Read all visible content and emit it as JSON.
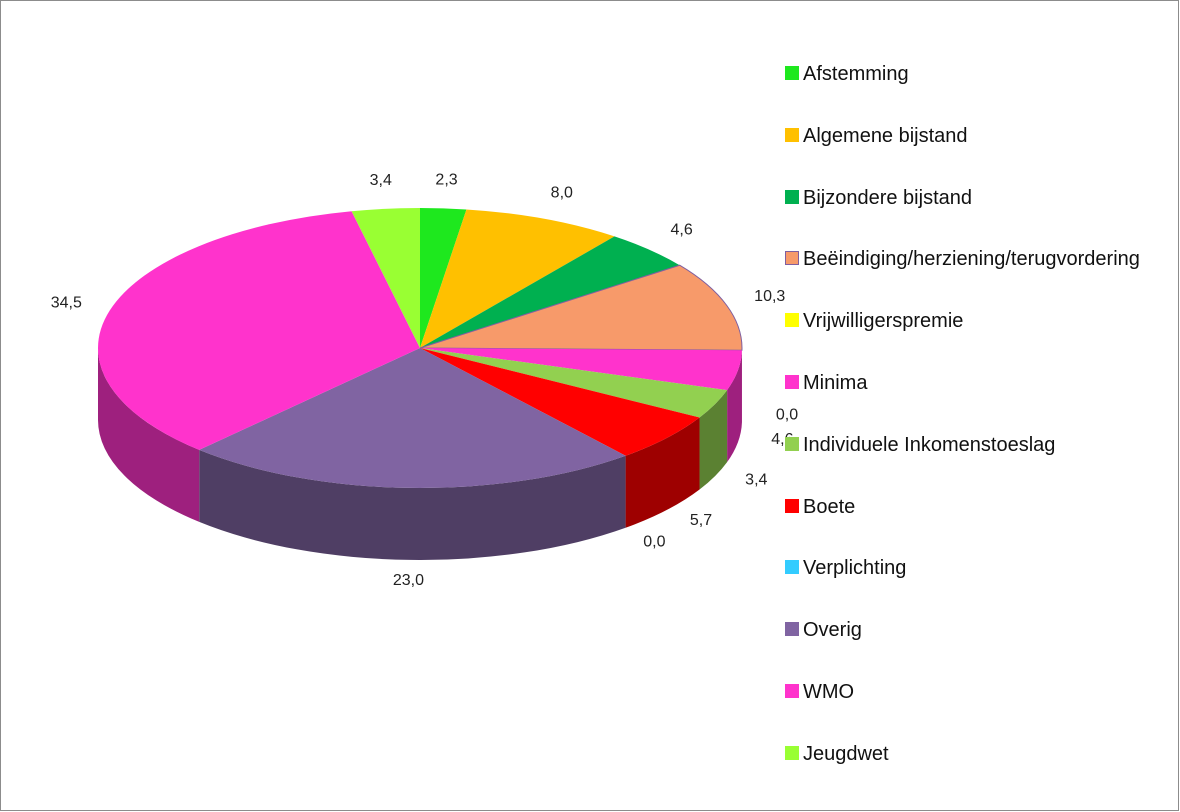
{
  "chart_data": {
    "type": "pie3d",
    "categories": [
      "Afstemming",
      "Algemene bijstand",
      "Bijzondere bijstand",
      "Beëindiging/herziening/terugvordering",
      "Vrijwilligerspremie",
      "Minima",
      "Individuele Inkomenstoeslag",
      "Boete",
      "Verplichting",
      "Overig",
      "WMO",
      "Jeugdwet"
    ],
    "values": [
      2.3,
      8.0,
      4.6,
      10.3,
      0.0,
      4.6,
      3.4,
      5.7,
      0.0,
      23.0,
      34.5,
      3.4
    ],
    "value_labels": [
      "2,3",
      "8,0",
      "4,6",
      "10,3",
      "0,0",
      "4,6",
      "3,4",
      "5,7",
      "0,0",
      "23,0",
      "34,5",
      "3,4"
    ],
    "colors": [
      "#1ee81e",
      "#ffc000",
      "#00b050",
      "#f79a6a",
      "#ffff00",
      "#ff33cc",
      "#92d050",
      "#ff0000",
      "#33ccff",
      "#8064a2",
      "#ff33cc",
      "#99ff33"
    ],
    "legend": "right"
  }
}
